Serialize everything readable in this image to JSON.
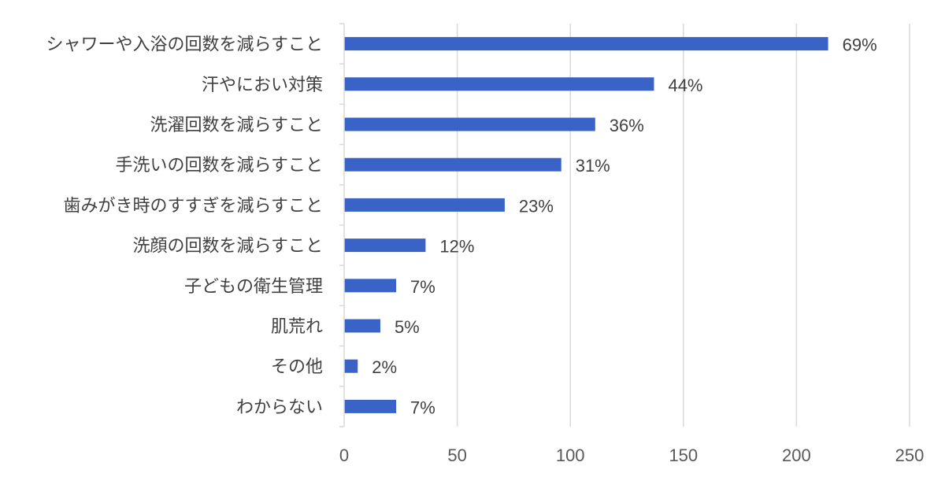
{
  "chart_data": {
    "type": "bar",
    "orientation": "horizontal",
    "title": "",
    "xlabel": "",
    "ylabel": "",
    "xlim": [
      0,
      250
    ],
    "x_ticks": [
      "0",
      "50",
      "100",
      "150",
      "200",
      "250"
    ],
    "grid": "vertical",
    "legend": "none",
    "bar_color": "#3a63c7",
    "categories": [
      "シャワーや入浴の回数を減らすこと",
      "汗やにおい対策",
      "洗濯回数を減らすこと",
      "手洗いの回数を減らすこと",
      "歯みがき時のすすぎを減らすこと",
      "洗顔の回数を減らすこと",
      "子どもの衛生管理",
      "肌荒れ",
      "その他",
      "わからない"
    ],
    "values": [
      214,
      137,
      111,
      96,
      71,
      36,
      23,
      16,
      6,
      23
    ],
    "data_labels": [
      "69%",
      "44%",
      "36%",
      "31%",
      "23%",
      "12%",
      "7%",
      "5%",
      "2%",
      "7%"
    ]
  }
}
